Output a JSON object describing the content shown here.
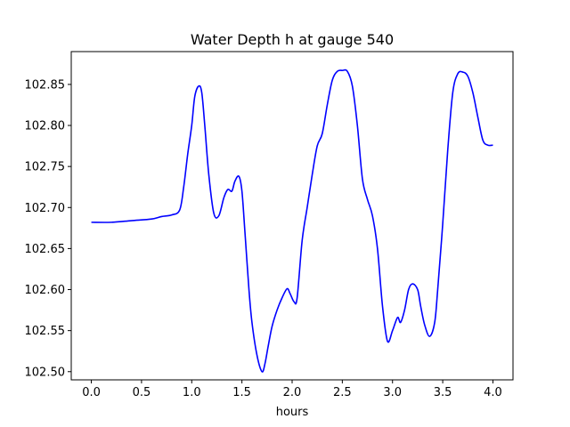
{
  "chart_data": {
    "type": "line",
    "title": "Water Depth h at gauge 540",
    "xlabel": "hours",
    "ylabel": "",
    "xlim": [
      -0.2,
      4.2
    ],
    "ylim": [
      102.49,
      102.89
    ],
    "xticks": [
      0.0,
      0.5,
      1.0,
      1.5,
      2.0,
      2.5,
      3.0,
      3.5,
      4.0
    ],
    "xtick_labels": [
      "0.0",
      "0.5",
      "1.0",
      "1.5",
      "2.0",
      "2.5",
      "3.0",
      "3.5",
      "4.0"
    ],
    "yticks": [
      102.5,
      102.55,
      102.6,
      102.65,
      102.7,
      102.75,
      102.8,
      102.85
    ],
    "ytick_labels": [
      "102.50",
      "102.55",
      "102.60",
      "102.65",
      "102.70",
      "102.75",
      "102.80",
      "102.85"
    ],
    "grid": false,
    "series": [
      {
        "color": "#0000ff",
        "x": [
          0.0,
          0.2,
          0.4,
          0.6,
          0.7,
          0.8,
          0.88,
          0.92,
          0.96,
          1.0,
          1.03,
          1.07,
          1.1,
          1.13,
          1.17,
          1.22,
          1.27,
          1.32,
          1.36,
          1.4,
          1.43,
          1.47,
          1.5,
          1.53,
          1.57,
          1.6,
          1.65,
          1.7,
          1.73,
          1.76,
          1.8,
          1.85,
          1.9,
          1.95,
          1.98,
          2.02,
          2.05,
          2.1,
          2.15,
          2.2,
          2.25,
          2.3,
          2.35,
          2.4,
          2.45,
          2.5,
          2.55,
          2.6,
          2.65,
          2.7,
          2.75,
          2.8,
          2.85,
          2.9,
          2.95,
          3.0,
          3.05,
          3.08,
          3.12,
          3.16,
          3.2,
          3.25,
          3.28,
          3.32,
          3.37,
          3.42,
          3.45,
          3.5,
          3.55,
          3.6,
          3.65,
          3.7,
          3.75,
          3.8,
          3.85,
          3.9,
          3.95,
          4.0
        ],
        "y": [
          102.682,
          102.682,
          102.684,
          102.686,
          102.689,
          102.691,
          102.697,
          102.725,
          102.765,
          102.8,
          102.835,
          102.848,
          102.84,
          102.8,
          102.74,
          102.693,
          102.69,
          102.712,
          102.722,
          102.72,
          102.732,
          102.738,
          102.72,
          102.67,
          102.6,
          102.56,
          102.52,
          102.5,
          102.51,
          102.53,
          102.555,
          102.575,
          102.59,
          102.601,
          102.595,
          102.585,
          102.59,
          102.66,
          102.7,
          102.74,
          102.775,
          102.79,
          102.825,
          102.855,
          102.866,
          102.867,
          102.866,
          102.848,
          102.8,
          102.735,
          102.71,
          102.69,
          102.65,
          102.58,
          102.537,
          102.55,
          102.566,
          102.56,
          102.575,
          102.6,
          102.607,
          102.6,
          102.58,
          102.557,
          102.543,
          102.56,
          102.6,
          102.68,
          102.77,
          102.84,
          102.863,
          102.865,
          102.86,
          102.84,
          102.81,
          102.782,
          102.776,
          102.776
        ]
      }
    ]
  }
}
